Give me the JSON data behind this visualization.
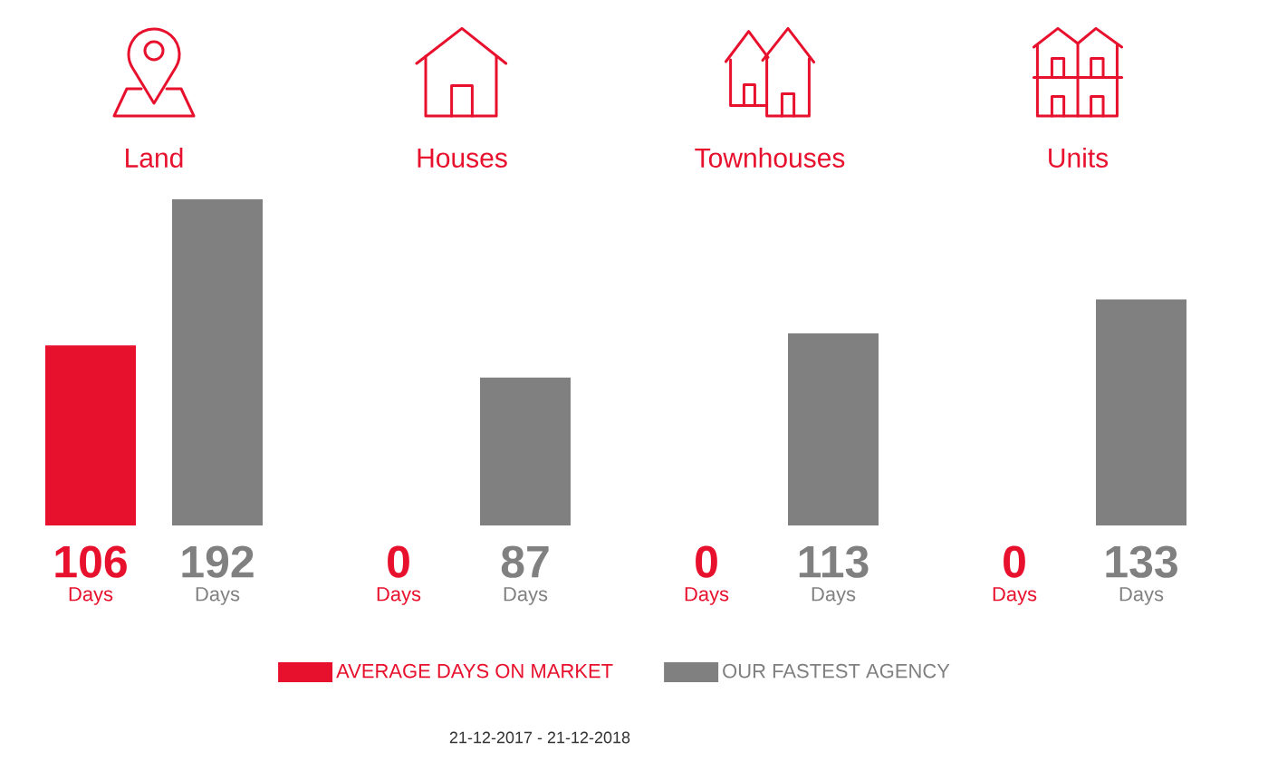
{
  "chart_data": {
    "type": "bar",
    "categories": [
      "Land",
      "Houses",
      "Townhouses",
      "Units"
    ],
    "series": [
      {
        "name": "AVERAGE DAYS ON MARKET",
        "color": "#e8112d",
        "values": [
          106,
          0,
          0,
          0
        ],
        "value_labels": [
          "106 Days",
          "0 Days",
          "0 Days",
          "0 Days"
        ]
      },
      {
        "name": "OUR FASTEST AGENCY",
        "color": "#808080",
        "values": [
          192,
          87,
          113,
          133
        ],
        "value_labels": [
          "192 Days",
          "87 Days",
          "113 Days",
          "133 Days"
        ]
      }
    ],
    "legend": "bottom",
    "tick_labels": "x",
    "annotations": [
      "21-12-2017 - 21-12-2018"
    ]
  }
}
